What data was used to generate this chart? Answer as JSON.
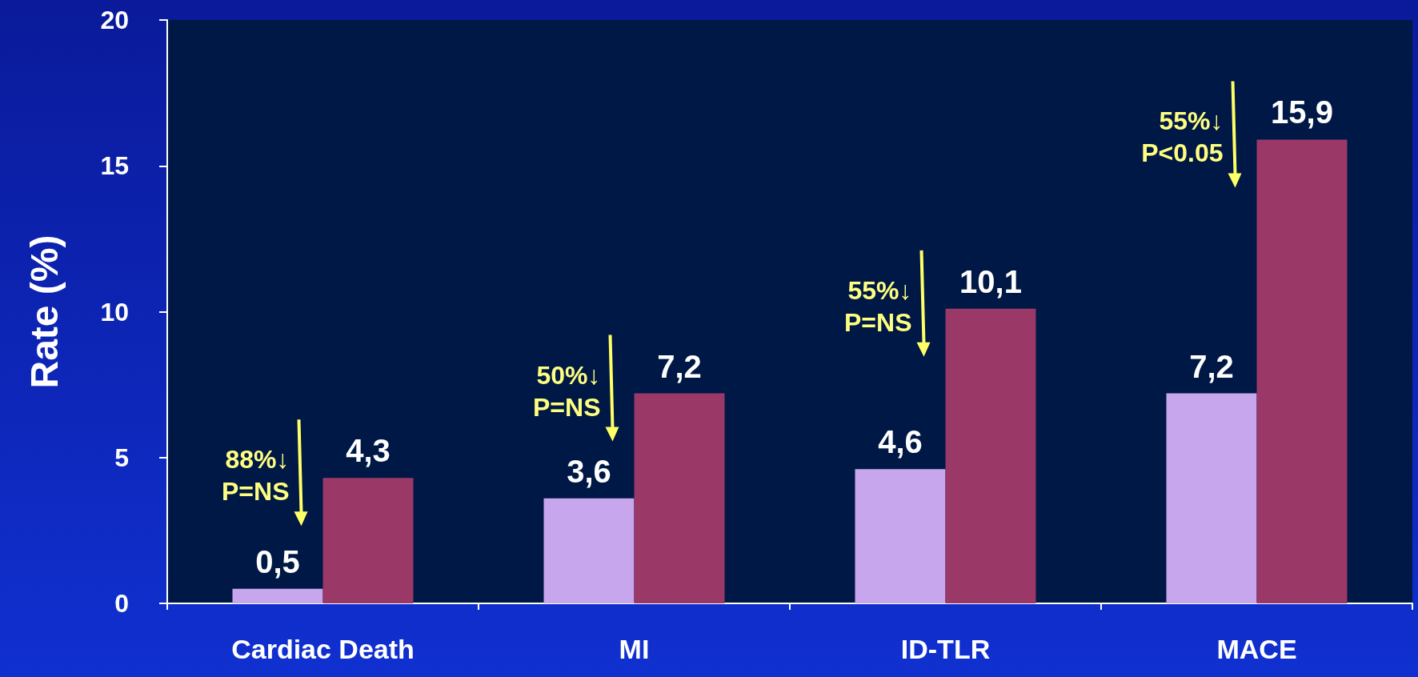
{
  "chart_data": {
    "type": "bar",
    "ylabel": "Rate (%)",
    "categories": [
      "Cardiac Death",
      "MI",
      "ID-TLR",
      "MACE"
    ],
    "series": [
      {
        "color": "#c8a6ee",
        "values": [
          0.5,
          3.6,
          4.6,
          7.2
        ],
        "value_labels": [
          "0,5",
          "3,6",
          "4,6",
          "7,2"
        ]
      },
      {
        "color": "#9a3868",
        "values": [
          4.3,
          7.2,
          10.1,
          15.9
        ],
        "value_labels": [
          "4,3",
          "7,2",
          "10,1",
          "15,9"
        ]
      }
    ],
    "ylim": [
      0,
      20
    ],
    "yticks": [
      0,
      5,
      10,
      15,
      20
    ],
    "grid": false,
    "annotations": [
      "88%↓\nP=NS",
      "50%↓\nP=NS",
      "55%↓\nP=NS",
      "55%↓\nP<0.05"
    ]
  }
}
